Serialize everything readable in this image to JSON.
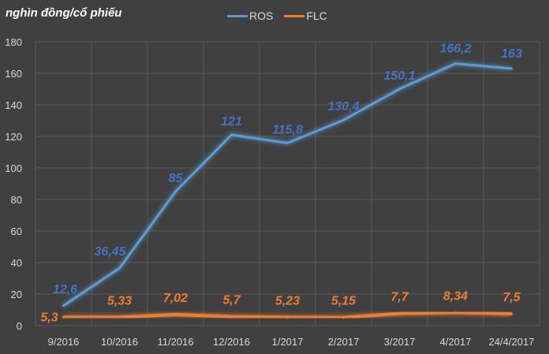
{
  "chart_data": {
    "type": "line",
    "title": "",
    "ylabel": "nghìn đồng/cổ phiếu",
    "xlabel": "",
    "categories": [
      "9/2016",
      "10/2016",
      "11/2016",
      "12/2016",
      "1/2017",
      "2/2017",
      "3/2017",
      "4/2017",
      "24/4/2017"
    ],
    "ylim": [
      0,
      180
    ],
    "yticks": [
      0,
      20,
      40,
      60,
      80,
      100,
      120,
      140,
      160,
      180
    ],
    "grid": true,
    "legend_position": "top-center",
    "series": [
      {
        "name": "ROS",
        "color": "#5b9bd5",
        "label_color": "#4472c4",
        "values": [
          12.6,
          36.45,
          85,
          121,
          115.8,
          130.4,
          150.1,
          166.2,
          163
        ],
        "labels": [
          "12,6",
          "36,45",
          "85",
          "121",
          "115,8",
          "130,4",
          "150,1",
          "166,2",
          "163"
        ]
      },
      {
        "name": "FLC",
        "color": "#ed7d31",
        "label_color": "#ed7d31",
        "values": [
          5.3,
          5.33,
          7.02,
          5.7,
          5.23,
          5.15,
          7.7,
          8.34,
          7.5
        ],
        "labels": [
          "5,3",
          "5,33",
          "7,02",
          "5,7",
          "5,23",
          "5,15",
          "7,7",
          "8,34",
          "7,5"
        ]
      }
    ]
  }
}
